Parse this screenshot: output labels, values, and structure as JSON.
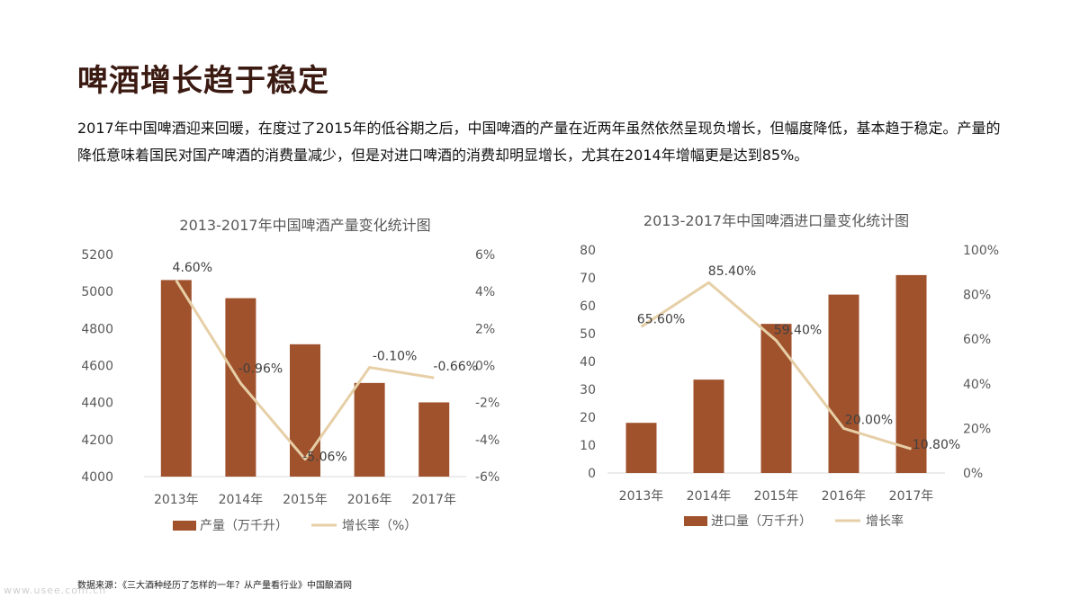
{
  "page": {
    "title": "啤酒增长趋于稳定",
    "paragraph": "2017年中国啤酒迎来回暖，在度过了2015年的低谷期之后，中国啤酒的产量在近两年虽然依然呈现负增长，但幅度降低，基本趋于稳定。产量的降低意味着国民对国产啤酒的消费量减少，但是对进口啤酒的消费却明显增长，尤其在2014年增幅更是达到85%。",
    "source": "数据来源：《三大酒种经历了怎样的一年？从产量看行业》中国酿酒网",
    "watermark": "www.usee.com.cn"
  },
  "colors": {
    "bar": "#a0522d",
    "line": "#e6cfa6",
    "axis_text": "#595959",
    "title_text": "#595959",
    "heading": "#3b1a12"
  },
  "chart_data": [
    {
      "type": "bar",
      "title": "2013-2017年中国啤酒产量变化统计图",
      "categories": [
        "2013年",
        "2014年",
        "2015年",
        "2016年",
        "2017年"
      ],
      "series": [
        {
          "name": "产量（万千升）",
          "type": "bar",
          "axis": "left",
          "values": [
            5062,
            4964,
            4715,
            4506,
            4401
          ]
        },
        {
          "name": "增长率（%）",
          "type": "line",
          "axis": "right",
          "values": [
            4.6,
            -0.96,
            -5.06,
            -0.1,
            -0.66
          ],
          "labels": [
            "4.60%",
            "-0.96%",
            "-5.06%",
            "-0.10%",
            "-0.66%"
          ]
        }
      ],
      "ylim_left": [
        4000,
        5200
      ],
      "yticks_left": [
        "4000",
        "4200",
        "4400",
        "4600",
        "4800",
        "5000",
        "5200"
      ],
      "ylim_right": [
        -6,
        6
      ],
      "yticks_right": [
        "-6%",
        "-4%",
        "-2%",
        "0%",
        "2%",
        "4%",
        "6%"
      ],
      "legend": "bottom",
      "grid": false
    },
    {
      "type": "bar",
      "title": "2013-2017年中国啤酒进口量变化统计图",
      "categories": [
        "2013年",
        "2014年",
        "2015年",
        "2016年",
        "2017年"
      ],
      "series": [
        {
          "name": "进口量（万千升）",
          "type": "bar",
          "axis": "left",
          "values": [
            18,
            33.5,
            53.5,
            64,
            71
          ]
        },
        {
          "name": "增长率",
          "type": "line",
          "axis": "right",
          "values": [
            65.6,
            85.4,
            59.4,
            20.0,
            10.8
          ],
          "labels": [
            "65.60%",
            "85.40%",
            "59.40%",
            "20.00%",
            "10.80%"
          ]
        }
      ],
      "ylim_left": [
        0,
        80
      ],
      "yticks_left": [
        "0",
        "10",
        "20",
        "30",
        "40",
        "50",
        "60",
        "70",
        "80"
      ],
      "ylim_right": [
        0,
        100
      ],
      "yticks_right": [
        "0%",
        "20%",
        "40%",
        "60%",
        "80%",
        "100%"
      ],
      "legend": "bottom",
      "grid": false
    }
  ]
}
